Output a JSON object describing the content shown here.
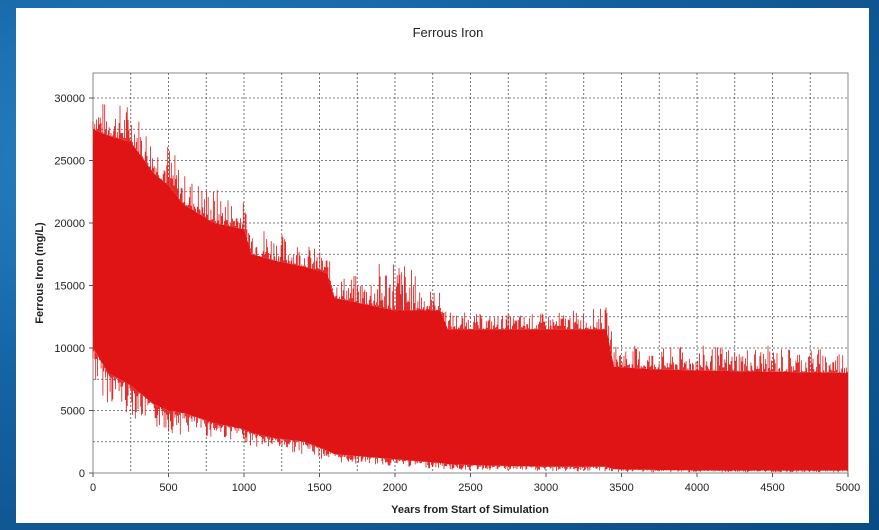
{
  "chart_data": {
    "type": "area",
    "title": "Ferrous Iron",
    "xlabel": "Years from Start of Simulation",
    "ylabel": "Ferrous Iron (mg/L)",
    "xlim": [
      0,
      5000
    ],
    "ylim": [
      0,
      32000
    ],
    "x_ticks": [
      0,
      500,
      1000,
      1500,
      2000,
      2500,
      3000,
      3500,
      4000,
      4500,
      5000
    ],
    "y_ticks": [
      0,
      5000,
      10000,
      15000,
      20000,
      25000,
      30000
    ],
    "grid": true,
    "series": [
      {
        "color": "#e01414",
        "x": [
          0,
          100,
          250,
          400,
          500,
          600,
          800,
          1000,
          1050,
          1200,
          1400,
          1550,
          1600,
          1800,
          2000,
          2200,
          2300,
          2350,
          2600,
          3000,
          3400,
          3450,
          3700,
          4000,
          4500,
          5000
        ],
        "upper": [
          27500,
          27000,
          26500,
          24000,
          23000,
          21500,
          20000,
          19500,
          17500,
          17000,
          16500,
          16000,
          14000,
          13500,
          13000,
          13000,
          13000,
          11500,
          11500,
          11500,
          11500,
          8500,
          8300,
          8200,
          8100,
          8000
        ],
        "lower": [
          10000,
          8000,
          7000,
          5500,
          5000,
          4800,
          4000,
          3500,
          3200,
          2800,
          2500,
          1800,
          1500,
          1300,
          1100,
          900,
          800,
          700,
          600,
          500,
          500,
          300,
          250,
          200,
          200,
          200
        ],
        "peaks": [
          30500,
          29500,
          29800,
          27000,
          26800,
          24000,
          23000,
          21800,
          20500,
          19500,
          18500,
          17500,
          16000,
          15800,
          18200,
          15000,
          14500,
          13000,
          12700,
          12800,
          13300,
          10500,
          10000,
          10200,
          10200,
          10000
        ],
        "troughs": [
          7000,
          5500,
          4500,
          3500,
          3200,
          3000,
          2800,
          2500,
          2000,
          1800,
          1500,
          1000,
          800,
          700,
          500,
          400,
          300,
          200,
          200,
          100,
          100,
          50,
          50,
          50,
          50,
          50
        ]
      }
    ]
  }
}
